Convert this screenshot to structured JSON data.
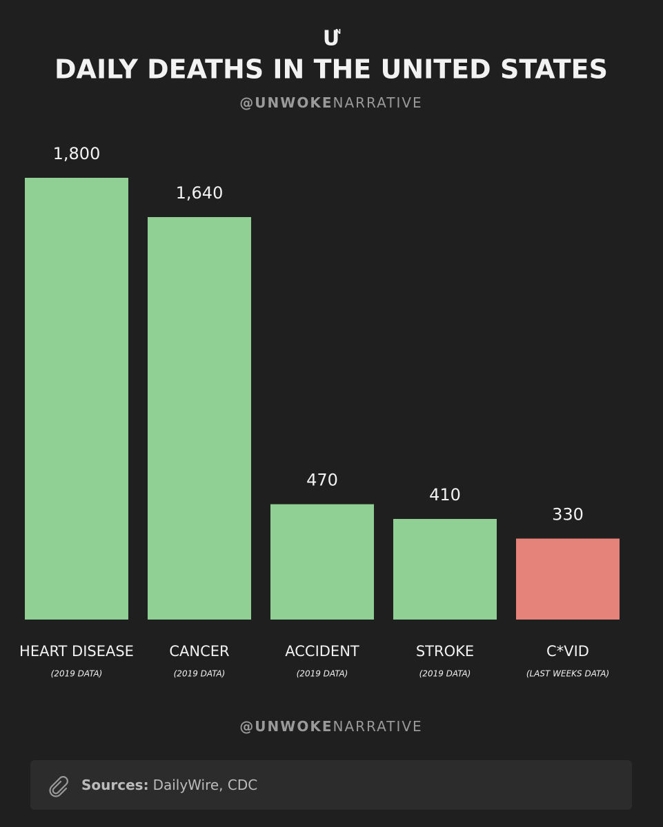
{
  "logo": {
    "main": "U",
    "small": "N"
  },
  "handle": {
    "bold": "@UNWOKE",
    "light": "NARRATIVE"
  },
  "chart_data": {
    "type": "bar",
    "title": "DAILY DEATHS IN THE UNITED STATES",
    "categories": [
      "HEART DISEASE",
      "CANCER",
      "ACCIDENT",
      "STROKE",
      "C*VID"
    ],
    "notes": [
      "(2019 DATA)",
      "(2019 DATA)",
      "(2019 DATA)",
      "(2019 DATA)",
      "(LAST WEEKS DATA)"
    ],
    "values": [
      1800,
      1640,
      470,
      410,
      330
    ],
    "value_labels": [
      "1,800",
      "1,640",
      "470",
      "410",
      "330"
    ],
    "colors": [
      "#90d094",
      "#90d094",
      "#90d094",
      "#90d094",
      "#e5837a"
    ]
  },
  "sources": {
    "label": "Sources:",
    "text": "DailyWire, CDC"
  }
}
